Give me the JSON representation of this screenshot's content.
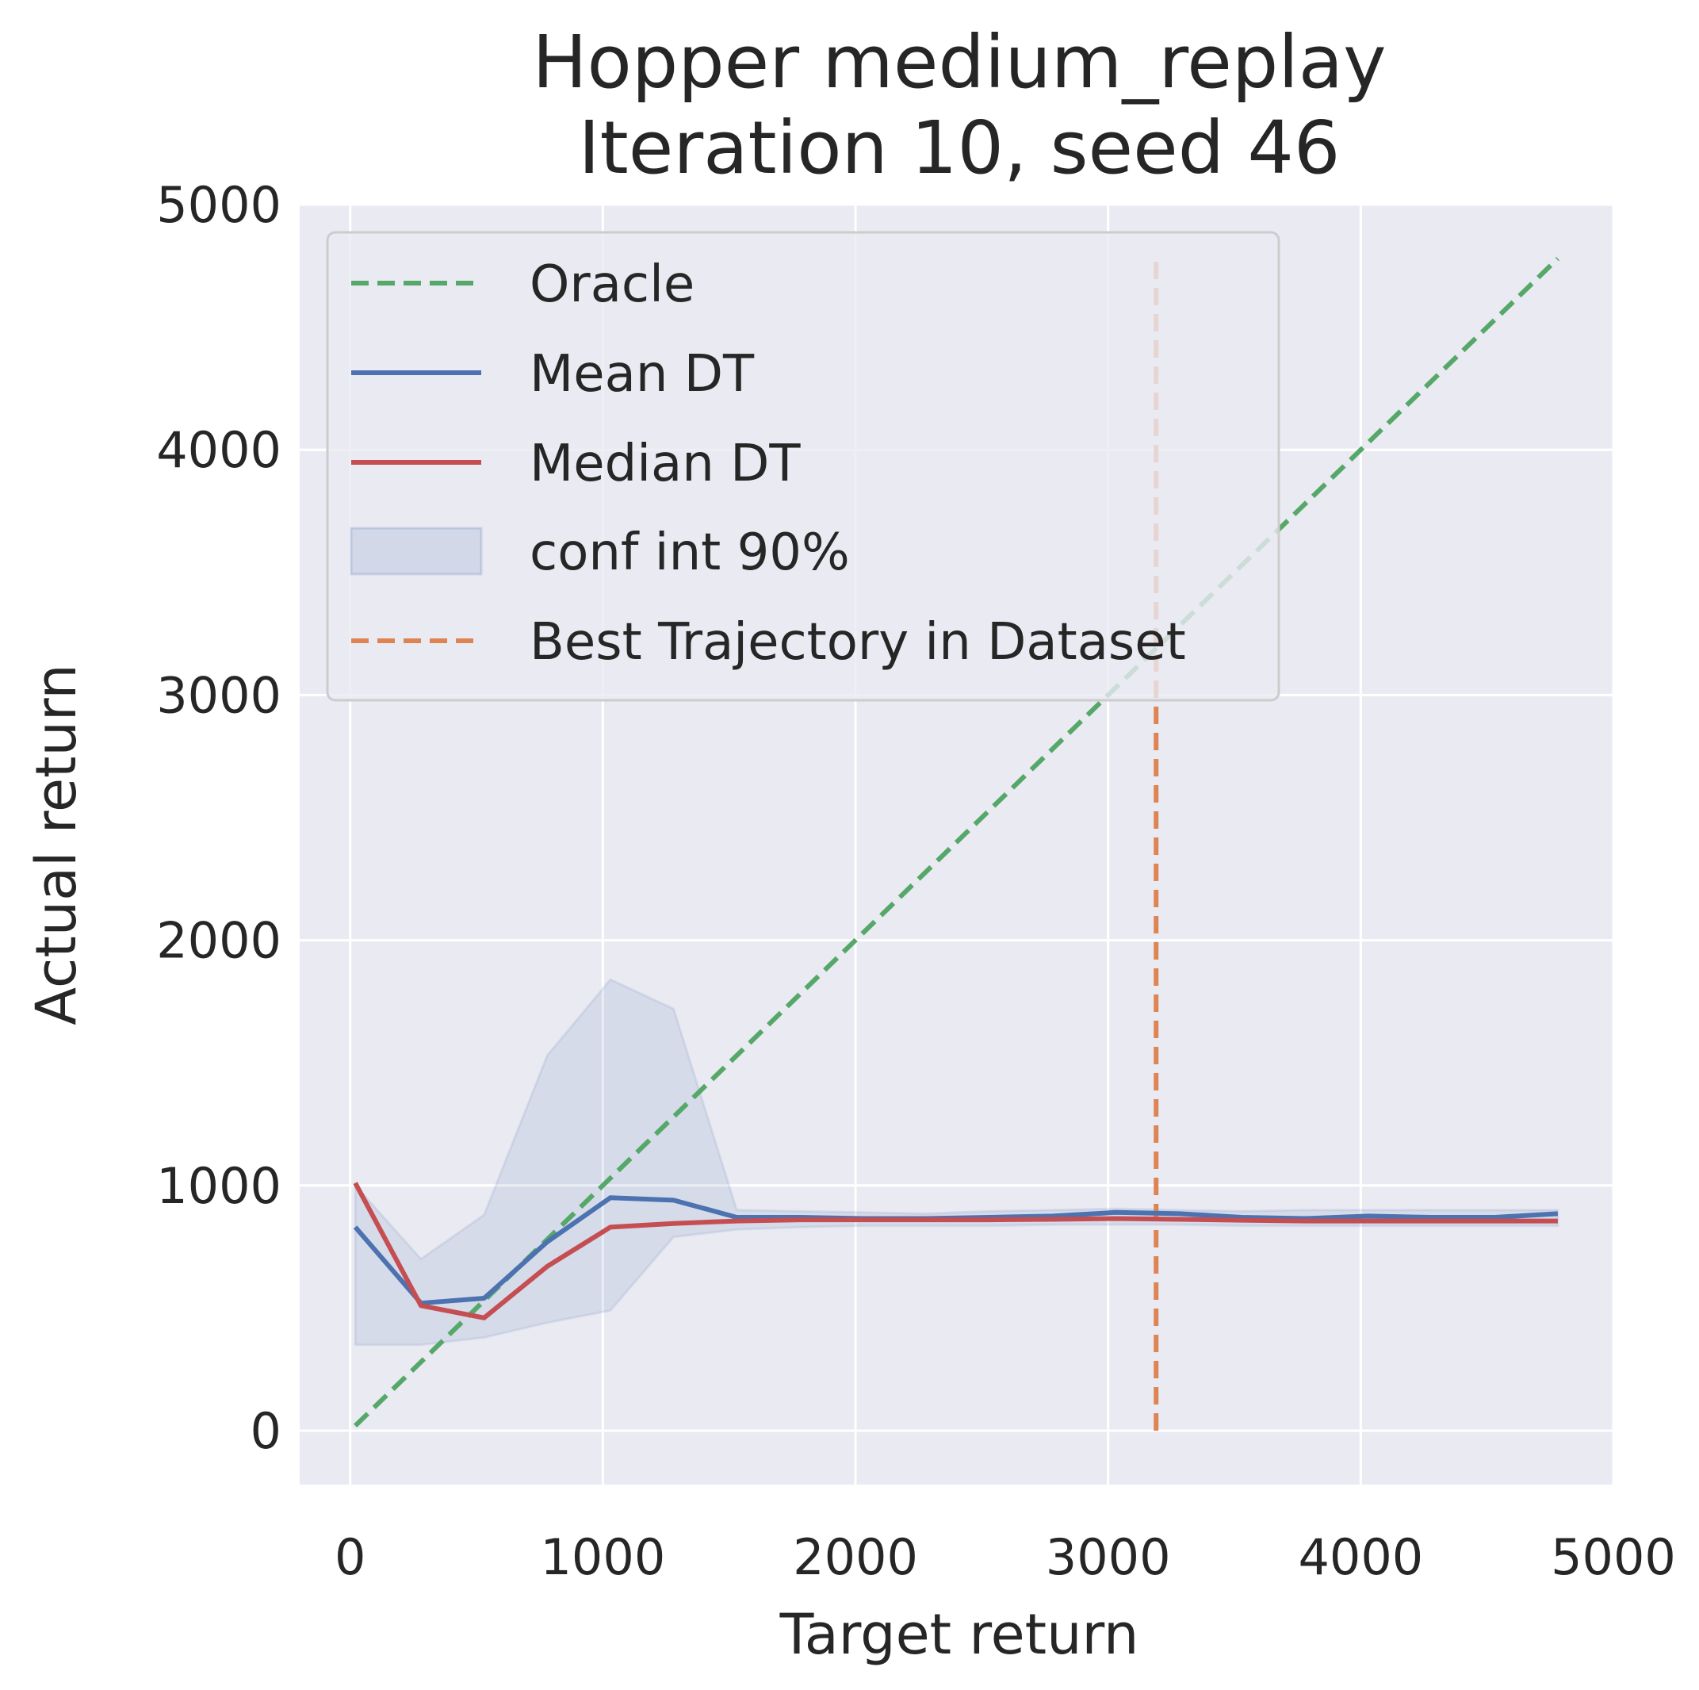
{
  "chart_data": {
    "type": "line",
    "title": [
      "Hopper medium_replay",
      "Iteration 10, seed 46"
    ],
    "xlabel": "Target return",
    "ylabel": "Actual return",
    "xlim": [
      -200,
      5000
    ],
    "ylim": [
      -220,
      5000
    ],
    "xticks": [
      0,
      1000,
      2000,
      3000,
      4000,
      5000
    ],
    "yticks": [
      0,
      1000,
      2000,
      3000,
      4000,
      5000
    ],
    "x": [
      20,
      280,
      530,
      780,
      1030,
      1280,
      1530,
      1780,
      2030,
      2280,
      2530,
      2780,
      3030,
      3280,
      3530,
      3780,
      4030,
      4280,
      4530,
      4780
    ],
    "series": [
      {
        "name": "Oracle",
        "kind": "dashed-line",
        "color": "#55a868",
        "x": [
          20,
          4780
        ],
        "values": [
          20,
          4780
        ]
      },
      {
        "name": "Mean DT",
        "kind": "line",
        "color": "#4c72b0",
        "values": [
          830,
          520,
          540,
          770,
          950,
          940,
          870,
          870,
          865,
          865,
          870,
          875,
          890,
          885,
          870,
          865,
          875,
          870,
          870,
          885
        ]
      },
      {
        "name": "Median DT",
        "kind": "line",
        "color": "#c44e52",
        "values": [
          1010,
          510,
          460,
          670,
          830,
          845,
          855,
          860,
          860,
          860,
          860,
          862,
          865,
          862,
          858,
          855,
          855,
          855,
          855,
          855
        ]
      },
      {
        "name": "conf int 90%",
        "kind": "band",
        "color": "#4c72b0",
        "lower": [
          350,
          350,
          380,
          440,
          490,
          790,
          820,
          830,
          835,
          835,
          835,
          840,
          840,
          840,
          835,
          835,
          835,
          835,
          835,
          835
        ],
        "upper": [
          1000,
          700,
          880,
          1530,
          1840,
          1720,
          900,
          895,
          890,
          885,
          895,
          900,
          905,
          900,
          895,
          900,
          900,
          900,
          900,
          900
        ]
      },
      {
        "name": "Best Trajectory in Dataset",
        "kind": "vline",
        "color": "#dd8452",
        "x": 3190,
        "y_range": [
          0,
          4780
        ]
      }
    ],
    "legend_position": "upper-left",
    "grid": true,
    "background": "#eaeaf2"
  }
}
